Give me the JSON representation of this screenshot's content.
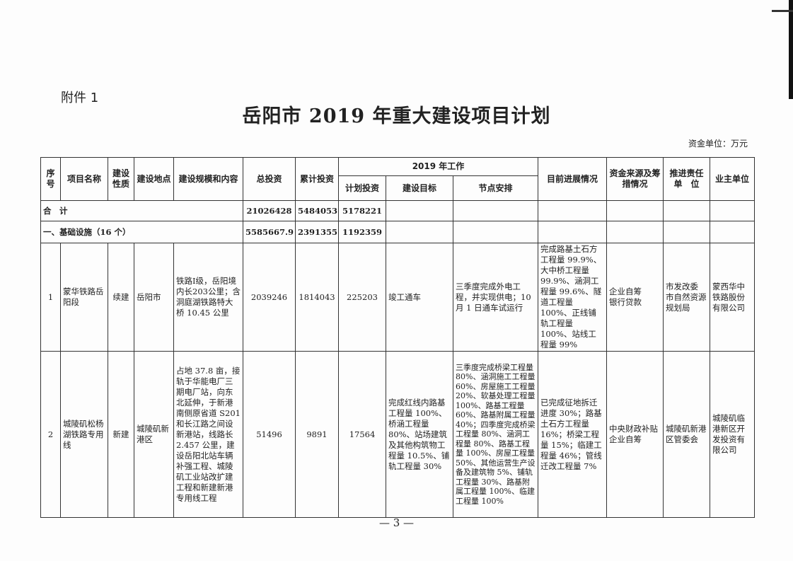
{
  "attachment_label": "附件 1",
  "title": "岳阳市 2019 年重大建设项目计划",
  "unit_note": "资金单位：万元",
  "headers": {
    "seq": "序号",
    "name": "项目名称",
    "nature": "建设性质",
    "location": "建设地点",
    "scope": "建设规模和内容",
    "total": "总投资",
    "cumulative": "累计投资",
    "work2019": "2019 年工作",
    "plan_invest": "计划投资",
    "goal": "建设目标",
    "milestones": "节点安排",
    "progress": "目前进展情况",
    "funding": "资金来源及筹措情况",
    "responsible": "推进责任单　位",
    "owner": "业主单位"
  },
  "total_row": {
    "label": "合　计",
    "total": "21026428",
    "cumulative": "5484053",
    "plan": "5178221"
  },
  "section_row": {
    "label": "一、基础设施（16 个）",
    "total": "5585667.9",
    "cumulative": "2391355",
    "plan": "1192359"
  },
  "rows": [
    {
      "seq": "1",
      "name": "蒙华铁路岳阳段",
      "nature": "续建",
      "location": "岳阳市",
      "scope": "铁路Ⅰ级，岳阳境内长203公里；含洞庭湖铁路特大桥 10.45 公里",
      "total": "2039246",
      "cumulative": "1814043",
      "plan": "225203",
      "goal": "竣工通车",
      "milestones": "三季度完成外电工程，并实现供电；10 月 1 日通车试运行",
      "progress": "完成路基土石方工程量 99.9%、大中桥工程量 99.9%、涵洞工程量 99.6%、隧道工程量 100%、正线铺轨工程量 100%、站线工程量 99%",
      "funding": "企业自筹\n银行贷款",
      "responsible": "市发改委\n市自然资源规划局",
      "owner": "蒙西华中铁路股份有限公司"
    },
    {
      "seq": "2",
      "name": "城陵矶松杨湖铁路专用线",
      "nature": "新建",
      "location": "城陵矶新港区",
      "scope": "占地 37.8 亩，接轨于华能电厂三期电厂站，向东北延伸，于新港南侧原省道 S201 和长江路之间设新港站，线路长 2.457 公里，建设岳阳北站车辆补强工程、城陵矶工业站改扩建工程和新建新港专用线工程",
      "total": "51496",
      "cumulative": "9891",
      "plan": "17564",
      "goal": "完成红线内路基工程量 100%、桥涵工程量 80%、站场建筑及其他构筑物工程量 10.5%、铺轨工程量 30%",
      "milestones": "三季度完成桥梁工程量 80%、涵洞施工工程量 60%、房屋施工工程量 20%、软基处理工程量 100%、路基工程量 60%、路基附属工程量 40%；四季度完成桥梁工程量 80%、涵洞工程量 80%、路基工程量 100%、房屋工程量 50%、其他运营生产设备及建筑物 5%、铺轨工程量 30%、路基附属工程量 100%、临建工程量 100%",
      "progress": "已完成征地拆迁进度 30%；路基土石方工程量 16%；桥梁工程量 15%；临建工程量 46%；管线迁改工程量 7%",
      "funding": "中央财政补贴\n企业自筹",
      "responsible": "城陵矶新港区管委会",
      "owner": "城陵矶临港新区开发投资有限公司"
    }
  ],
  "page_number": "— 3 —"
}
